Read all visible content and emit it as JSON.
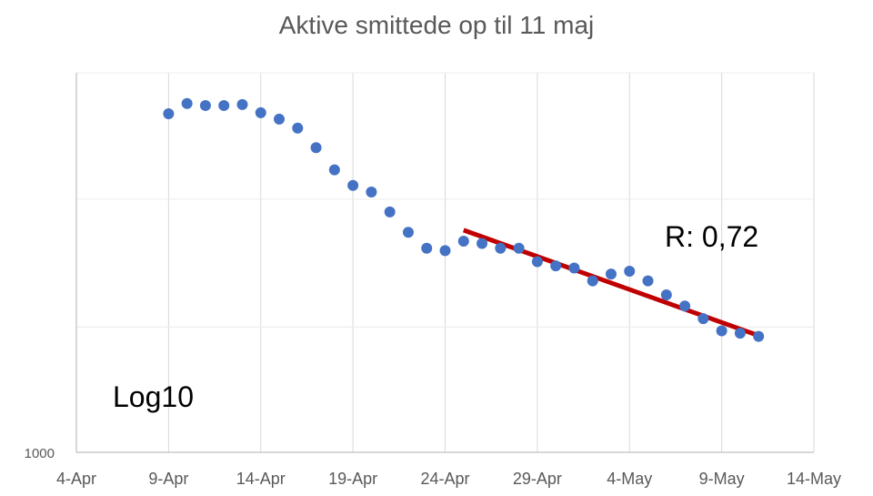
{
  "chart_data": {
    "type": "scatter",
    "title": "Aktive  smittede op til 11 maj",
    "y_scale": "log10",
    "y_tick_labels": [
      "1000"
    ],
    "x_tick_labels": [
      "4-Apr",
      "9-Apr",
      "14-Apr",
      "19-Apr",
      "24-Apr",
      "29-Apr",
      "4-May",
      "9-May",
      "14-May"
    ],
    "x_range": [
      "2020-04-04",
      "2020-05-14"
    ],
    "y_range": [
      1000,
      10000
    ],
    "grid": "vertical and horizontal",
    "annotations": {
      "scale_note": "Log10",
      "r_value": "R: 0,72"
    },
    "series": [
      {
        "marker_color": "#4472C4",
        "points": [
          {
            "date": "2020-04-09",
            "value": 7800
          },
          {
            "date": "2020-04-10",
            "value": 8300
          },
          {
            "date": "2020-04-11",
            "value": 8200
          },
          {
            "date": "2020-04-12",
            "value": 8200
          },
          {
            "date": "2020-04-13",
            "value": 8250
          },
          {
            "date": "2020-04-14",
            "value": 7850
          },
          {
            "date": "2020-04-15",
            "value": 7550
          },
          {
            "date": "2020-04-16",
            "value": 7150
          },
          {
            "date": "2020-04-17",
            "value": 6350
          },
          {
            "date": "2020-04-18",
            "value": 5550
          },
          {
            "date": "2020-04-19",
            "value": 5050
          },
          {
            "date": "2020-04-20",
            "value": 4850
          },
          {
            "date": "2020-04-21",
            "value": 4300
          },
          {
            "date": "2020-04-22",
            "value": 3800
          },
          {
            "date": "2020-04-23",
            "value": 3450
          },
          {
            "date": "2020-04-24",
            "value": 3400
          },
          {
            "date": "2020-04-25",
            "value": 3600
          },
          {
            "date": "2020-04-26",
            "value": 3550
          },
          {
            "date": "2020-04-27",
            "value": 3450
          },
          {
            "date": "2020-04-28",
            "value": 3450
          },
          {
            "date": "2020-04-29",
            "value": 3180
          },
          {
            "date": "2020-04-30",
            "value": 3100
          },
          {
            "date": "2020-05-01",
            "value": 3060
          },
          {
            "date": "2020-05-02",
            "value": 2830
          },
          {
            "date": "2020-05-03",
            "value": 2950
          },
          {
            "date": "2020-05-04",
            "value": 3000
          },
          {
            "date": "2020-05-05",
            "value": 2830
          },
          {
            "date": "2020-05-06",
            "value": 2600
          },
          {
            "date": "2020-05-07",
            "value": 2430
          },
          {
            "date": "2020-05-08",
            "value": 2250
          },
          {
            "date": "2020-05-09",
            "value": 2090
          },
          {
            "date": "2020-05-10",
            "value": 2060
          },
          {
            "date": "2020-05-11",
            "value": 2020
          }
        ]
      }
    ],
    "trendline": {
      "color": "#C00000",
      "start": {
        "date": "2020-04-25",
        "value": 3850
      },
      "end": {
        "date": "2020-05-11",
        "value": 2030
      }
    }
  }
}
